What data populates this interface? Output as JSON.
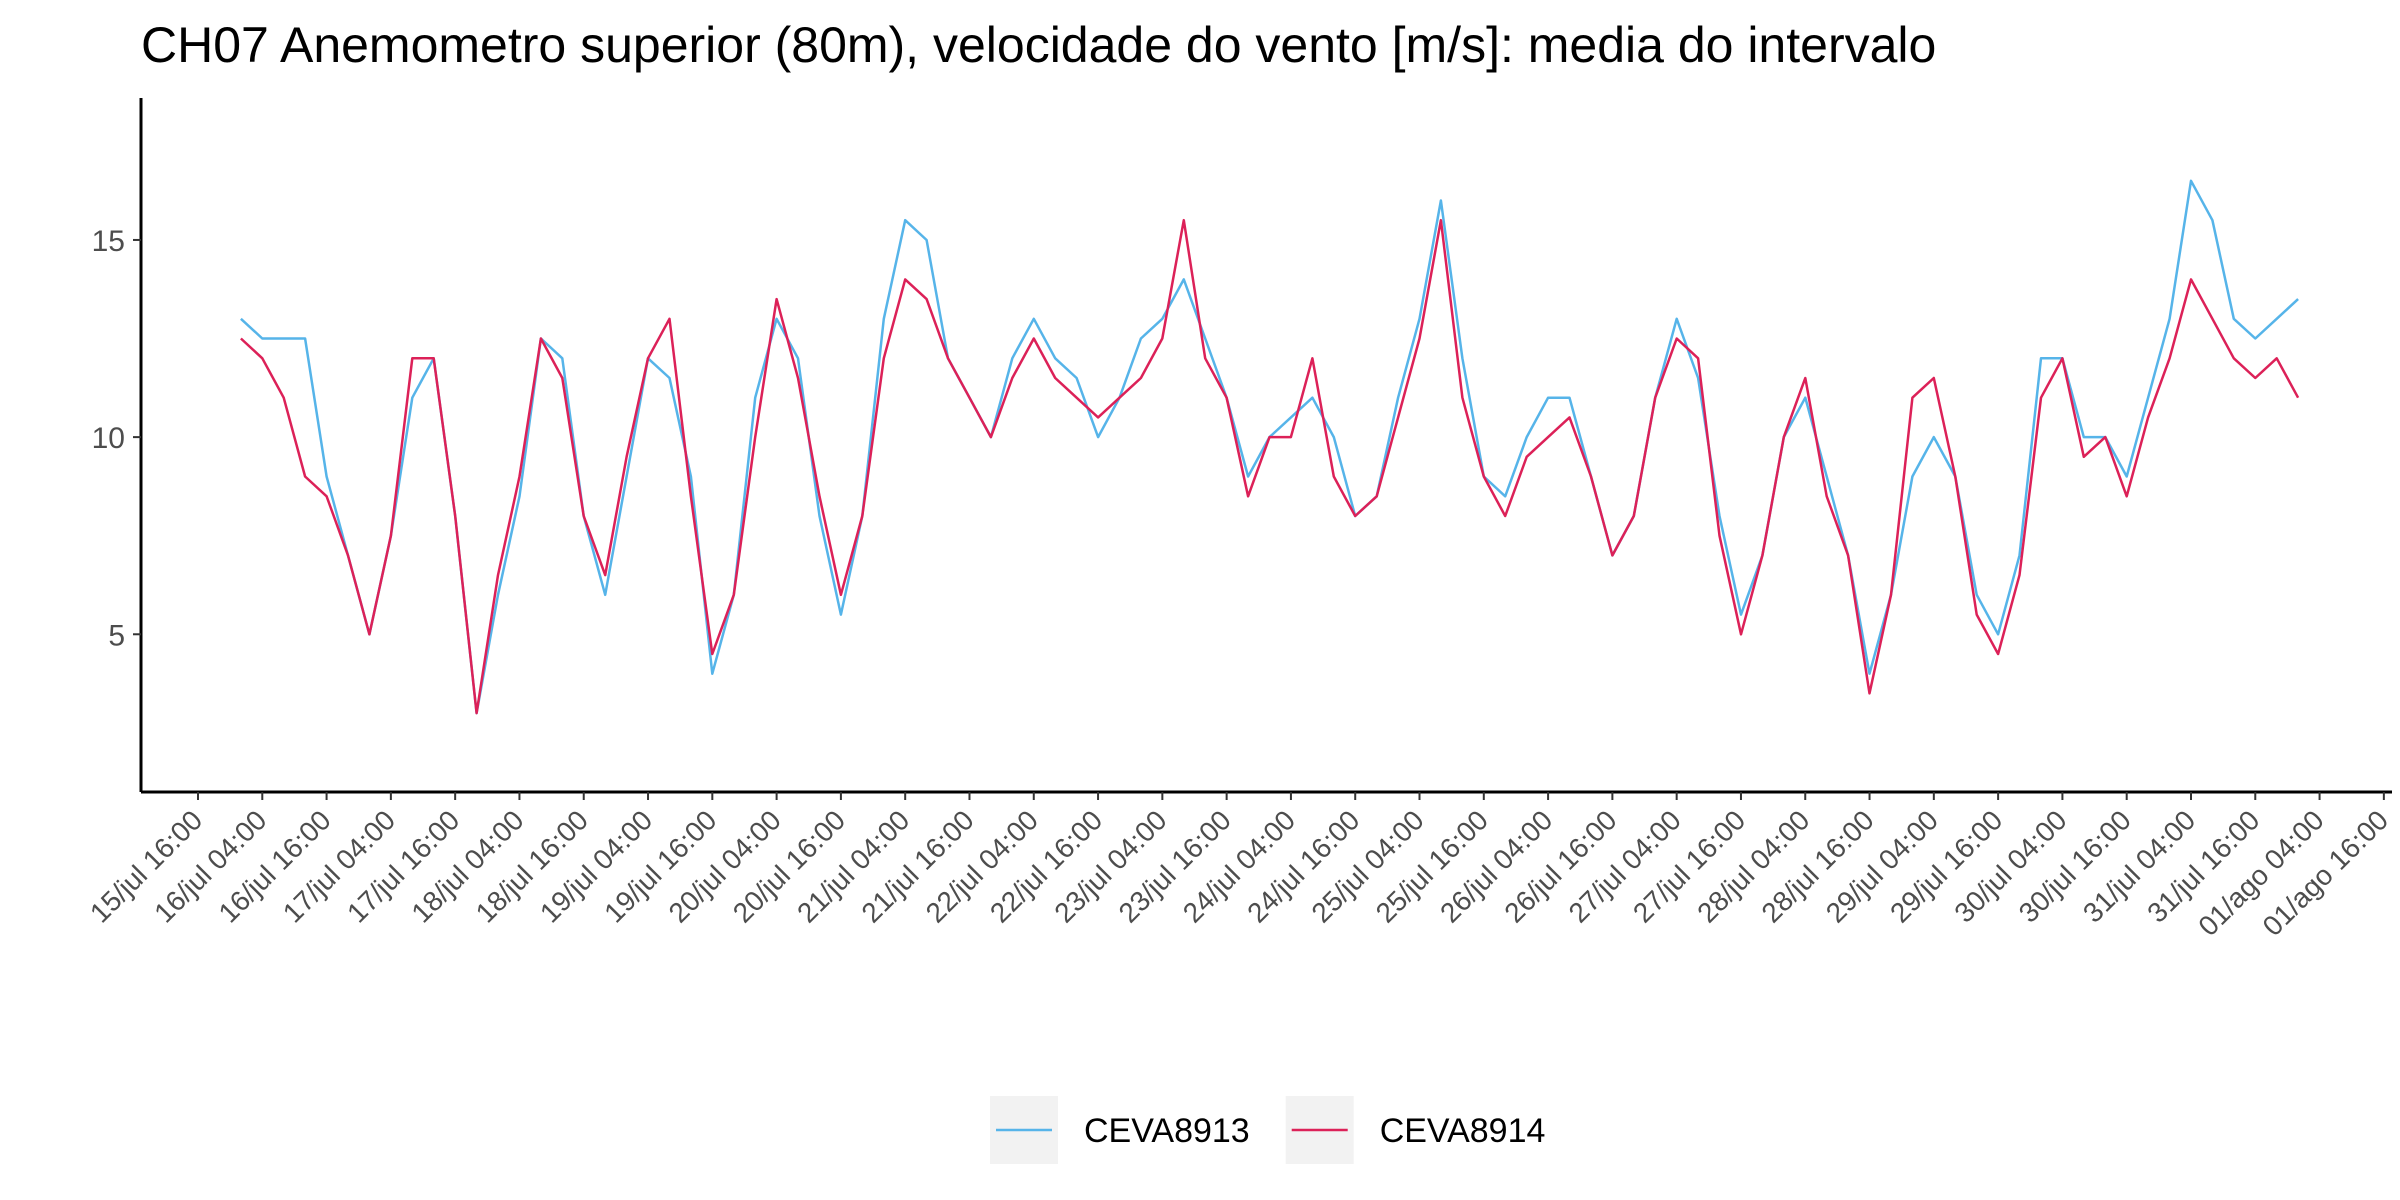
{
  "chart_data": {
    "type": "line",
    "title": "CH07 Anemometro superior (80m), velocidade do vento [m/s]: media do intervalo",
    "categories": [
      "15/jul 16:00",
      null,
      null,
      "16/jul 04:00",
      null,
      null,
      "16/jul 16:00",
      null,
      null,
      "17/jul 04:00",
      null,
      null,
      "17/jul 16:00",
      null,
      null,
      "18/jul 04:00",
      null,
      null,
      "18/jul 16:00",
      null,
      null,
      "19/jul 04:00",
      null,
      null,
      "19/jul 16:00",
      null,
      null,
      "20/jul 04:00",
      null,
      null,
      "20/jul 16:00",
      null,
      null,
      "21/jul 04:00",
      null,
      null,
      "21/jul 16:00",
      null,
      null,
      "22/jul 04:00",
      null,
      null,
      "22/jul 16:00",
      null,
      null,
      "23/jul 04:00",
      null,
      null,
      "23/jul 16:00",
      null,
      null,
      "24/jul 04:00",
      null,
      null,
      "24/jul 16:00",
      null,
      null,
      "25/jul 04:00",
      null,
      null,
      "25/jul 16:00",
      null,
      null,
      "26/jul 04:00",
      null,
      null,
      "26/jul 16:00",
      null,
      null,
      "27/jul 04:00",
      null,
      null,
      "27/jul 16:00",
      null,
      null,
      "28/jul 04:00",
      null,
      null,
      "28/jul 16:00",
      null,
      null,
      "29/jul 04:00",
      null,
      null,
      "29/jul 16:00",
      null,
      null,
      "30/jul 04:00",
      null,
      null,
      "30/jul 16:00",
      null,
      null,
      "31/jul 04:00",
      null,
      null,
      "31/jul 16:00",
      null,
      null,
      "01/ago 04:00",
      null,
      null,
      "01/ago 16:00"
    ],
    "series": [
      {
        "name": "CEVA8913",
        "color": "#56b4e9",
        "values": [
          null,
          null,
          13,
          12.5,
          12.5,
          12.5,
          9,
          7,
          5,
          7.5,
          11,
          12,
          8,
          3,
          6,
          8.5,
          12.5,
          12,
          8,
          6,
          9,
          12,
          11.5,
          9,
          4,
          6,
          11,
          13,
          12,
          8,
          5.5,
          8,
          13,
          15.5,
          15,
          12,
          11,
          10,
          12,
          13,
          12,
          11.5,
          10,
          11,
          12.5,
          13,
          14,
          12.5,
          11,
          9,
          10,
          10.5,
          11,
          10,
          8,
          8.5,
          11,
          13,
          16,
          12,
          9,
          8.5,
          10,
          11,
          11,
          9,
          7,
          8,
          11,
          13,
          11.5,
          8,
          5.5,
          7,
          10,
          11,
          9,
          7,
          4,
          6,
          9,
          10,
          9,
          6,
          5,
          7,
          12,
          12,
          10,
          10,
          9,
          11,
          13,
          16.5,
          15.5,
          13,
          12.5,
          13,
          13.5,
          null,
          null,
          null,
          null
        ]
      },
      {
        "name": "CEVA8914",
        "color": "#dc2158",
        "values": [
          null,
          null,
          12.5,
          12,
          11,
          9,
          8.5,
          7,
          5,
          7.5,
          12,
          12,
          8,
          3,
          6.5,
          9,
          12.5,
          11.5,
          8,
          6.5,
          9.5,
          12,
          13,
          8.5,
          4.5,
          6,
          10,
          13.5,
          11.5,
          8.5,
          6,
          8,
          12,
          14,
          13.5,
          12,
          11,
          10,
          11.5,
          12.5,
          11.5,
          11,
          10.5,
          11,
          11.5,
          12.5,
          15.5,
          12,
          11,
          8.5,
          10,
          10,
          12,
          9,
          8,
          8.5,
          10.5,
          12.5,
          15.5,
          11,
          9,
          8,
          9.5,
          10,
          10.5,
          9,
          7,
          8,
          11,
          12.5,
          12,
          7.5,
          5,
          7,
          10,
          11.5,
          8.5,
          7,
          3.5,
          6,
          11,
          11.5,
          9,
          5.5,
          4.5,
          6.5,
          11,
          12,
          9.5,
          10,
          8.5,
          10.5,
          12,
          14,
          13,
          12,
          11.5,
          12,
          11,
          null,
          null,
          null,
          null
        ]
      }
    ],
    "ylim": [
      1,
      18.6
    ],
    "yticks": [
      5,
      10,
      15
    ],
    "grid": false,
    "legend": "bottom"
  }
}
